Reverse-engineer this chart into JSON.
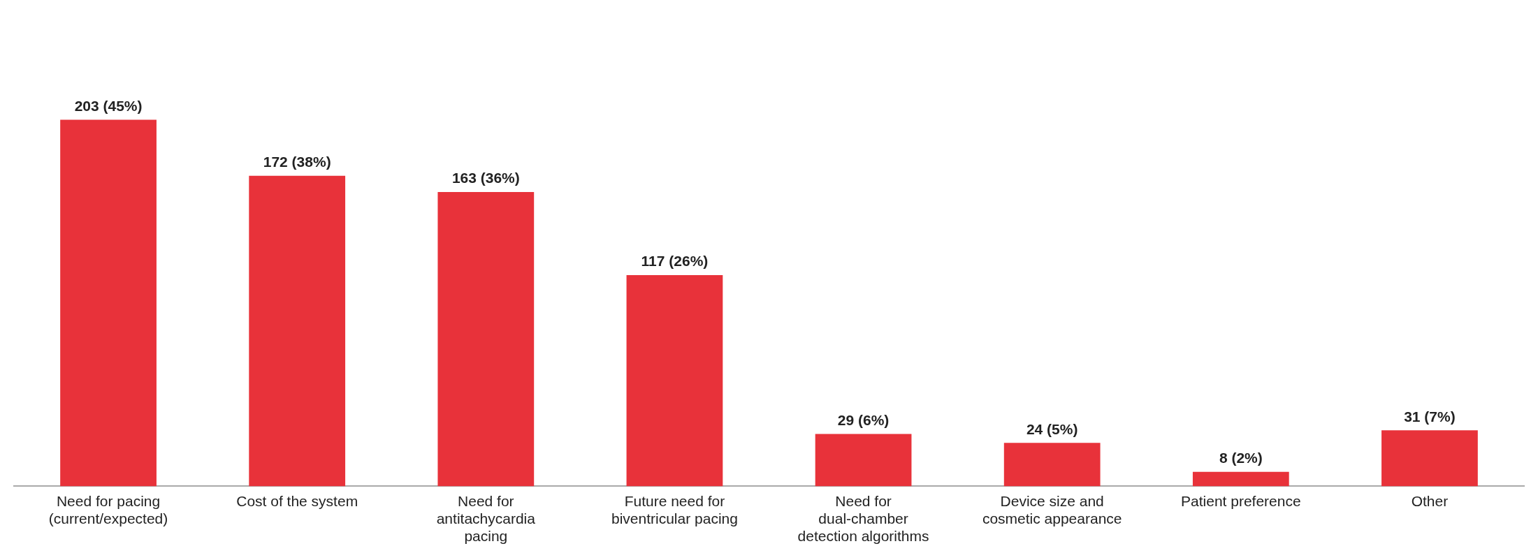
{
  "chart_data": {
    "type": "bar",
    "categories": [
      "Need for pacing (current/expected)",
      "Cost of the system",
      "Need for antitachycardia pacing",
      "Future need for biventricular pacing",
      "Need for dual-chamber detection algorithms",
      "Device size and cosmetic appearance",
      "Patient preference",
      "Other"
    ],
    "values": [
      203,
      172,
      163,
      117,
      29,
      24,
      8,
      31
    ],
    "value_labels": [
      "203 (45%)",
      "172 (38%)",
      "163 (36%)",
      "117 (26%)",
      "29 (6%)",
      "24 (5%)",
      "8 (2%)",
      "31 (7%)"
    ],
    "color": "#e8323a",
    "grid": false,
    "legend": false,
    "tick_labels": "x"
  }
}
